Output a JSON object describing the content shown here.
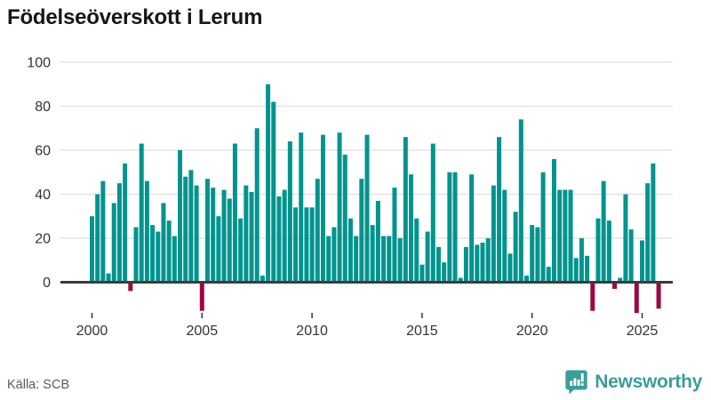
{
  "title": "Födelseöverskott i Lerum",
  "source": "Källa: SCB",
  "brand": {
    "name": "Newsworthy"
  },
  "colors": {
    "positive": "#00948e",
    "negative": "#9b0842",
    "axis": "#3b3b3b",
    "grid": "#e3e3e3",
    "tick_text": "#333333",
    "title_text": "#171717",
    "brand_teal": "#3a9e9a"
  },
  "chart_data": {
    "type": "bar",
    "title": "Födelseöverskott i Lerum",
    "xlabel": "",
    "ylabel": "",
    "x_unit": "quarter",
    "start_year": 2000,
    "quarters_per_year": 4,
    "x_ticks": [
      2000,
      2005,
      2010,
      2015,
      2020,
      2025
    ],
    "y_ticks": [
      0,
      20,
      40,
      60,
      80,
      100
    ],
    "ylim": [
      -16,
      100
    ],
    "grid": true,
    "legend": "none",
    "series": [
      {
        "name": "Födelseöverskott",
        "values": [
          30,
          40,
          46,
          4,
          36,
          45,
          54,
          -4,
          25,
          63,
          46,
          26,
          23,
          36,
          28,
          21,
          60,
          48,
          51,
          44,
          -13,
          47,
          43,
          30,
          42,
          38,
          63,
          29,
          44,
          41,
          70,
          3,
          90,
          82,
          39,
          42,
          64,
          34,
          68,
          34,
          34,
          47,
          67,
          21,
          25,
          68,
          58,
          29,
          21,
          47,
          67,
          26,
          37,
          21,
          21,
          43,
          20,
          66,
          49,
          29,
          8,
          23,
          63,
          16,
          9,
          50,
          50,
          2,
          16,
          49,
          17,
          18,
          20,
          44,
          66,
          42,
          13,
          32,
          74,
          3,
          26,
          25,
          50,
          7,
          56,
          42,
          42,
          42,
          11,
          20,
          12,
          -13,
          29,
          46,
          28,
          -3,
          2,
          40,
          24,
          -14,
          19,
          45,
          54,
          -12
        ]
      }
    ]
  }
}
